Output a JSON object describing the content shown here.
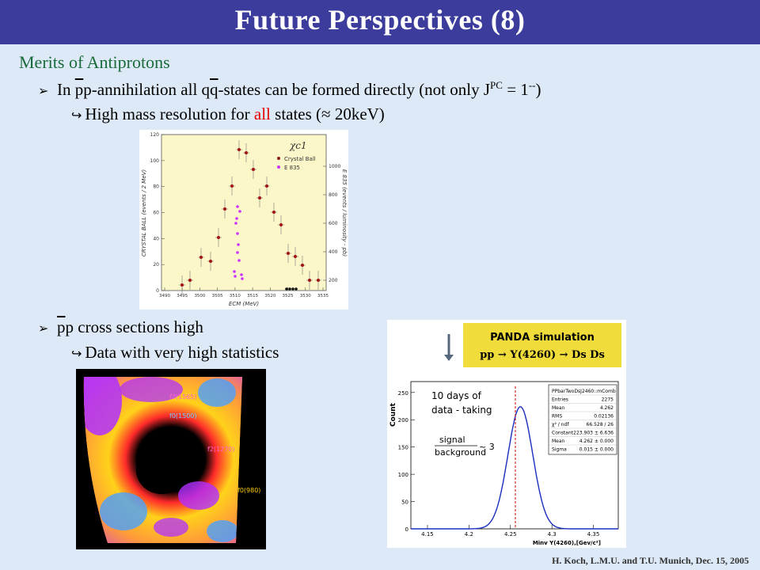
{
  "title": "Future Perspectives (8)",
  "subhead": "Merits of Antiprotons",
  "bullet1": {
    "pre": "In ",
    "p1": "p",
    "mid1": "p-annihilation all q",
    "q": "q",
    "mid2": "-states can be formed directly (not only J",
    "sup": "PC",
    "post": " = 1",
    "sup2": "--",
    "end": ")"
  },
  "sub1": {
    "pre": "High mass resolution for ",
    "emph": "all",
    "post": " states (≈ 20keV)"
  },
  "bullet2": {
    "p": "p",
    "rest": "p cross sections high"
  },
  "sub2": "Data with very high statistics",
  "footer": "H. Koch, L.M.U. and T.U.  Munich, Dec. 15, 2005",
  "plot1": {
    "label": "χc1",
    "legend_cb": "Crystal Ball",
    "legend_e835": "E 835",
    "ylabel_left": "CRYSTAL BALL (events / 2 MeV)",
    "ylabel_right": "E 835 (events / luminosity - pb)",
    "xlabel": "ECM (MeV)",
    "xticks": [
      "3490",
      "3495",
      "3500",
      "3505",
      "3510",
      "3515",
      "3520",
      "3525",
      "3530",
      "3535"
    ],
    "yticks_left": [
      "0",
      "20",
      "40",
      "60",
      "80",
      "100",
      "120"
    ],
    "yticks_right": [
      "200",
      "400",
      "600",
      "800",
      "1000"
    ]
  },
  "dalitz": {
    "labels": [
      "f2(1565)",
      "f0(1500)",
      "f2(1270)",
      "f0(980)"
    ]
  },
  "plot2": {
    "banner_title": "PANDA simulation",
    "banner_reaction": "pp → Y(4260) → Ds Ds",
    "annotation1": "10 days of",
    "annotation2": "data - taking",
    "signal": "signal",
    "background": "background",
    "ratio": "~ 3",
    "ylabel": "Count",
    "xlabel": "Minv Y(4260),[Gev/c²]",
    "yticks": [
      "0",
      "50",
      "100",
      "150",
      "200",
      "250"
    ],
    "xticks": [
      "4.15",
      "4.2",
      "4.25",
      "4.3",
      "4.35"
    ],
    "stats": [
      [
        "PPbarTwoDsJ2460::mComb",
        ""
      ],
      [
        "Entries",
        "2275"
      ],
      [
        "Mean",
        "4.262"
      ],
      [
        "RMS",
        "0.02136"
      ],
      [
        "χ² / ndf",
        "66.528 / 26"
      ],
      [
        "Constant",
        "223.903 ± 6.636"
      ],
      [
        "Mean",
        "4.262 ± 0.000"
      ],
      [
        "Sigma",
        "0.015 ± 0.000"
      ]
    ]
  }
}
